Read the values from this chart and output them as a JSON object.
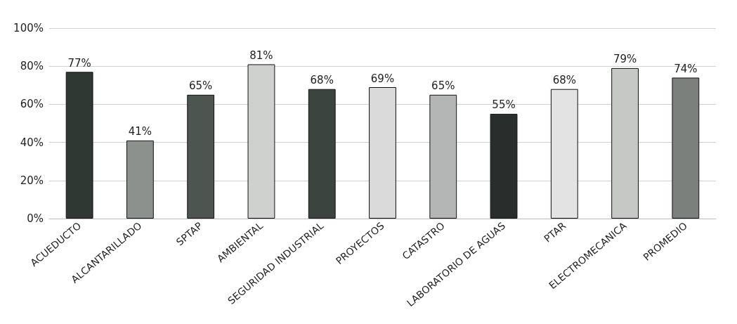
{
  "chart_data": {
    "type": "bar",
    "categories": [
      "ACUEDUCTO",
      "ALCANTARILLADO",
      "SPTAP",
      "AMBIENTAL",
      "SEGURIDAD INDUSTRIAL",
      "PROYECTOS",
      "CATASTRO",
      "LABORATORIO DE AGUAS",
      "PTAR",
      "ELECTROMECANICA",
      "PROMEDIO"
    ],
    "values": [
      77,
      41,
      65,
      81,
      68,
      69,
      65,
      55,
      68,
      79,
      74
    ],
    "value_labels": [
      "77%",
      "41%",
      "65%",
      "81%",
      "68%",
      "69%",
      "65%",
      "55%",
      "68%",
      "79%",
      "74%"
    ],
    "colors": [
      "#2f3833",
      "#8c918e",
      "#4d5550",
      "#cfd1cf",
      "#3c4440",
      "#d9dad9",
      "#b3b6b4",
      "#292d2b",
      "#e3e3e3",
      "#c6c8c6",
      "#7b807d"
    ],
    "ylim": [
      0,
      100
    ],
    "yticks": [
      {
        "value": 0,
        "label": "0%"
      },
      {
        "value": 20,
        "label": "20%"
      },
      {
        "value": 40,
        "label": "40%"
      },
      {
        "value": 60,
        "label": "60%"
      },
      {
        "value": 80,
        "label": "80%"
      },
      {
        "value": 100,
        "label": "100%"
      }
    ],
    "grid": "y"
  }
}
